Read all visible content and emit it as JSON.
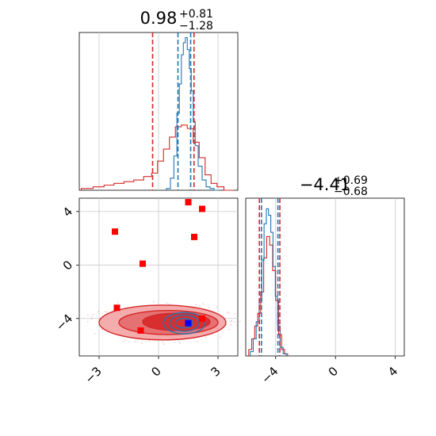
{
  "chart_data": {
    "type": "corner",
    "parameters": [
      {
        "title_value": "0.98",
        "title_upper": "+0.81",
        "title_lower": "−1.28",
        "range": [
          -4.0,
          4.0
        ],
        "ticks": [
          -3,
          0,
          3
        ],
        "tick_labels": [
          "−3",
          "0",
          "3"
        ],
        "quantiles_red": [
          -0.3,
          1.79
        ],
        "quantiles_blue": [
          0.98,
          1.62
        ],
        "hist_blue_x": [
          0.5,
          0.7,
          0.85,
          1.0,
          1.1,
          1.2,
          1.3,
          1.4,
          1.5,
          1.6,
          1.7,
          1.8,
          1.9,
          2.1,
          2.3,
          2.5,
          2.7,
          2.9
        ],
        "hist_blue_y": [
          0.01,
          0.07,
          0.2,
          0.45,
          0.62,
          0.79,
          0.86,
          0.89,
          0.82,
          0.71,
          0.58,
          0.4,
          0.26,
          0.14,
          0.06,
          0.02,
          0.01,
          0.0
        ],
        "hist_red_x": [
          -3.6,
          -3.0,
          -2.5,
          -2.0,
          -1.5,
          -1.0,
          -0.5,
          -0.2,
          0.1,
          0.4,
          0.7,
          1.0,
          1.3,
          1.6,
          1.9,
          2.2,
          2.5,
          2.8,
          3.1,
          3.5
        ],
        "hist_red_y": [
          0.01,
          0.02,
          0.03,
          0.04,
          0.05,
          0.06,
          0.08,
          0.1,
          0.17,
          0.24,
          0.31,
          0.37,
          0.38,
          0.36,
          0.28,
          0.19,
          0.09,
          0.04,
          0.02,
          0.0
        ]
      },
      {
        "title_value": "−4.41",
        "title_upper": "+0.69",
        "title_lower": "−0.68",
        "range": [
          -6.0,
          4.6
        ],
        "ticks": [
          -4,
          0,
          4
        ],
        "tick_labels": [
          "−4",
          "0",
          "4"
        ],
        "quantiles_red": [
          -5.09,
          -3.72
        ],
        "quantiles_blue": [
          -4.95,
          -3.85
        ],
        "hist_blue_x": [
          -5.6,
          -5.4,
          -5.2,
          -5.0,
          -4.85,
          -4.7,
          -4.55,
          -4.4,
          -4.25,
          -4.1,
          -3.95,
          -3.8,
          -3.6,
          -3.4
        ],
        "hist_blue_y": [
          0.02,
          0.08,
          0.16,
          0.26,
          0.45,
          0.62,
          0.69,
          0.66,
          0.58,
          0.42,
          0.28,
          0.14,
          0.04,
          0.01
        ],
        "hist_red_x": [
          -5.7,
          -5.5,
          -5.3,
          -5.1,
          -4.9,
          -4.7,
          -4.5,
          -4.3,
          -4.1,
          -3.9,
          -3.7,
          -3.5,
          -3.3
        ],
        "hist_red_y": [
          0.03,
          0.08,
          0.14,
          0.2,
          0.3,
          0.46,
          0.56,
          0.52,
          0.4,
          0.26,
          0.1,
          0.03,
          0.01
        ]
      }
    ],
    "scatter_markers_red": [
      {
        "x": -2.2,
        "y": 2.5
      },
      {
        "x": -0.8,
        "y": 0.1
      },
      {
        "x": 1.5,
        "y": 4.7
      },
      {
        "x": 2.2,
        "y": 4.2
      },
      {
        "x": 1.8,
        "y": 2.1
      },
      {
        "x": -2.1,
        "y": -3.2
      },
      {
        "x": -0.9,
        "y": -4.9
      },
      {
        "x": 2.2,
        "y": -4.0
      }
    ],
    "scatter_markers_blue": [
      {
        "x": 1.5,
        "y": -4.35
      }
    ],
    "red_contours": [
      {
        "center": [
          0.2,
          -4.3
        ],
        "rx": 3.2,
        "ry": 1.3,
        "tilt": 0.0
      },
      {
        "center": [
          0.5,
          -4.3
        ],
        "rx": 2.5,
        "ry": 0.9,
        "tilt": 0.0
      },
      {
        "center": [
          0.9,
          -4.25
        ],
        "rx": 1.7,
        "ry": 0.65,
        "tilt": 0.0
      }
    ],
    "blue_contours": [
      {
        "center": [
          1.3,
          -4.35
        ],
        "rx": 1.05,
        "ry": 0.8
      },
      {
        "center": [
          1.3,
          -4.35
        ],
        "rx": 0.75,
        "ry": 0.6
      },
      {
        "center": [
          1.3,
          -4.35
        ],
        "rx": 0.45,
        "ry": 0.35
      }
    ],
    "grid": true,
    "colors": {
      "red": "#d62728",
      "blue": "#1f77b4",
      "red_fill_outer": "#f3a3a4",
      "red_fill_mid": "#e46a6b",
      "red_fill_inner": "#d62728",
      "grid": "#c8c8c8",
      "marker_red": "#ff0000",
      "marker_blue": "#0000ff"
    }
  }
}
